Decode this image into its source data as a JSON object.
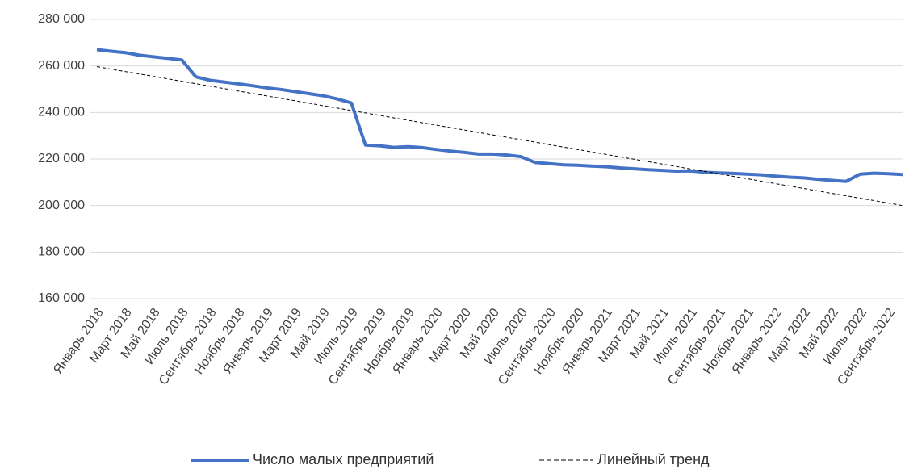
{
  "chart_data": {
    "type": "line",
    "categories": [
      "Январь 2018",
      null,
      "Март 2018",
      null,
      "Май 2018",
      null,
      "Июль 2018",
      null,
      "Сентябрь 2018",
      null,
      "Ноябрь 2018",
      null,
      "Январь 2019",
      null,
      "Март 2019",
      null,
      "Май 2019",
      null,
      "Июль 2019",
      null,
      "Сентябрь 2019",
      null,
      "Ноябрь 2019",
      null,
      "Январь 2020",
      null,
      "Март 2020",
      null,
      "Май 2020",
      null,
      "Июль 2020",
      null,
      "Сентябрь 2020",
      null,
      "Ноябрь 2020",
      null,
      "Январь 2021",
      null,
      "Март 2021",
      null,
      "Май 2021",
      null,
      "Июль 2021",
      null,
      "Сентябрь 2021",
      null,
      "Ноябрь 2021",
      null,
      "Январь 2022",
      null,
      "Март 2022",
      null,
      "Май 2022",
      null,
      "Июль 2022",
      null,
      "Сентябрь 2022",
      null
    ],
    "series": [
      {
        "name": "Число малых предприятий",
        "color": "#4472c4",
        "values": [
          267000,
          266300,
          265700,
          264600,
          263900,
          263300,
          262600,
          255300,
          253800,
          253100,
          252300,
          251500,
          250600,
          249900,
          249000,
          248100,
          247200,
          245800,
          244100,
          226000,
          225700,
          225000,
          225300,
          224900,
          224100,
          223400,
          222800,
          222100,
          222100,
          221700,
          221000,
          218500,
          218000,
          217500,
          217300,
          217000,
          216700,
          216200,
          215800,
          215400,
          215100,
          214800,
          214900,
          214300,
          214000,
          213800,
          213500,
          213200,
          212600,
          212200,
          211900,
          211300,
          210800,
          210400,
          213500,
          213900,
          213700,
          213300
        ]
      },
      {
        "name": "Линейный тренд",
        "color": "#000000",
        "dashed": true,
        "values": [
          259700,
          258653,
          257605,
          256558,
          255511,
          254463,
          253416,
          252368,
          251321,
          250274,
          249226,
          248179,
          247132,
          246084,
          245037,
          243989,
          242942,
          241895,
          240847,
          239800,
          238753,
          237705,
          236658,
          235611,
          234563,
          233516,
          232468,
          231421,
          230374,
          229326,
          228279,
          227232,
          226184,
          225137,
          224089,
          223042,
          221995,
          220947,
          219900,
          218853,
          217805,
          216758,
          215711,
          214663,
          213616,
          212568,
          211521,
          210474,
          209426,
          208379,
          207332,
          206284,
          205237,
          204189,
          203142,
          202095,
          201047,
          200000
        ]
      }
    ],
    "ylim": [
      160000,
      280000
    ],
    "yticks": [
      {
        "value": 160000,
        "label": "160 000"
      },
      {
        "value": 180000,
        "label": "180 000"
      },
      {
        "value": 200000,
        "label": "200 000"
      },
      {
        "value": 220000,
        "label": "220 000"
      },
      {
        "value": 240000,
        "label": "240 000"
      },
      {
        "value": 260000,
        "label": "260 000"
      },
      {
        "value": 280000,
        "label": "280 000"
      }
    ],
    "grid": true,
    "legend": "bottom"
  }
}
